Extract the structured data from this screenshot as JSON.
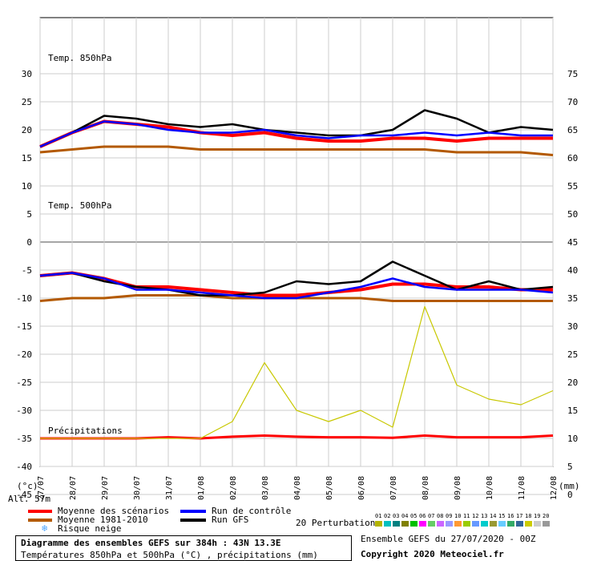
{
  "chart_data": {
    "type": "line",
    "x": [
      "27/07",
      "28/07",
      "29/07",
      "30/07",
      "31/07",
      "01/08",
      "02/08",
      "03/08",
      "04/08",
      "05/08",
      "06/08",
      "07/08",
      "08/08",
      "09/08",
      "10/08",
      "11/08",
      "12/08"
    ],
    "left_axis_ticks": [
      "30",
      "25",
      "20",
      "15",
      "10",
      "5",
      "0",
      "-5",
      "-10",
      "-15",
      "-20",
      "-25",
      "-30",
      "-35",
      "-40",
      "-45"
    ],
    "right_axis_ticks": [
      "75",
      "70",
      "65",
      "60",
      "55",
      "50",
      "45",
      "40",
      "35",
      "30",
      "25",
      "20",
      "15",
      "10",
      "5",
      "0"
    ],
    "left_axis_unit": "(°c)",
    "right_axis_unit": "(mm)",
    "altitude_label": "Alt. 57m",
    "panel_labels": {
      "t850": "Temp. 850hPa",
      "t500": "Temp. 500hPa",
      "precip": "Précipitations"
    },
    "series": [
      {
        "name": "Moyenne des scénarios (850hPa)",
        "color": "#ff0000",
        "values": [
          17.0,
          19.5,
          21.5,
          21.0,
          20.5,
          19.5,
          19.0,
          19.5,
          18.5,
          18.0,
          18.0,
          18.5,
          18.5,
          18.0,
          18.5,
          18.5,
          18.5
        ]
      },
      {
        "name": "Moyenne 1981-2010 (850hPa)",
        "color": "#b35900",
        "values": [
          16.0,
          16.5,
          17.0,
          17.0,
          17.0,
          16.5,
          16.5,
          16.5,
          16.5,
          16.5,
          16.5,
          16.5,
          16.5,
          16.0,
          16.0,
          16.0,
          15.5
        ]
      },
      {
        "name": "Run GFS (850hPa)",
        "color": "#000000",
        "values": [
          17.0,
          19.5,
          22.5,
          22.0,
          21.0,
          20.5,
          21.0,
          20.0,
          19.5,
          19.0,
          19.0,
          20.0,
          23.5,
          22.0,
          19.5,
          20.5,
          20.0
        ]
      },
      {
        "name": "Run de contrôle (850hPa)",
        "color": "#0000ff",
        "values": [
          17.0,
          19.5,
          21.5,
          21.0,
          20.0,
          19.5,
          19.5,
          20.0,
          19.0,
          18.5,
          19.0,
          19.0,
          19.5,
          19.0,
          19.5,
          19.0,
          19.0
        ]
      },
      {
        "name": "Moyenne des scénarios (500hPa)",
        "color": "#ff0000",
        "values": [
          -6.0,
          -5.5,
          -6.5,
          -8.0,
          -8.0,
          -8.5,
          -9.0,
          -9.5,
          -9.5,
          -9.0,
          -8.5,
          -7.5,
          -7.5,
          -8.0,
          -8.0,
          -8.5,
          -8.5
        ]
      },
      {
        "name": "Moyenne 1981-2010 (500hPa)",
        "color": "#b35900",
        "values": [
          -10.5,
          -10.0,
          -10.0,
          -9.5,
          -9.5,
          -9.5,
          -10.0,
          -10.0,
          -10.0,
          -10.0,
          -10.0,
          -10.5,
          -10.5,
          -10.5,
          -10.5,
          -10.5,
          -10.5
        ]
      },
      {
        "name": "Run GFS (500hPa)",
        "color": "#000000",
        "values": [
          -6.0,
          -5.5,
          -7.0,
          -8.0,
          -8.5,
          -9.5,
          -9.5,
          -9.0,
          -7.0,
          -7.5,
          -7.0,
          -3.5,
          -6.0,
          -8.5,
          -7.0,
          -8.5,
          -8.0
        ]
      },
      {
        "name": "Run de contrôle (500hPa)",
        "color": "#0000ff",
        "values": [
          -6.0,
          -5.5,
          -6.5,
          -8.5,
          -8.5,
          -9.0,
          -9.5,
          -10.0,
          -10.0,
          -9.0,
          -8.0,
          -6.5,
          -8.0,
          -8.5,
          -8.5,
          -8.5,
          -9.0
        ]
      },
      {
        "name": "Précipitations (moyenne)",
        "color": "#ff0000",
        "values": [
          0,
          0,
          0,
          0,
          0.2,
          0,
          0.3,
          0.5,
          0.3,
          0.2,
          0.2,
          0.1,
          0.5,
          0.2,
          0.2,
          0.2,
          0.5
        ]
      },
      {
        "name": "Précipitations (pic perturbation)",
        "color": "#c8c800",
        "values": [
          0,
          0,
          0,
          0,
          0,
          0,
          3.0,
          13.5,
          5.0,
          3.0,
          5.0,
          2.0,
          23.5,
          9.5,
          7.0,
          6.0,
          8.5
        ]
      }
    ],
    "legend": [
      {
        "label": "Moyenne des scénarios",
        "color": "#ff0000"
      },
      {
        "label": "Moyenne 1981-2010",
        "color": "#b35900"
      },
      {
        "label": "Risque neige",
        "color": "#4da6ff"
      },
      {
        "label": "Run de contrôle",
        "color": "#0000ff"
      },
      {
        "label": "Run GFS",
        "color": "#000000"
      }
    ],
    "perturbations": {
      "title": "20 Perturbations",
      "ids": [
        "01",
        "02",
        "03",
        "04",
        "05",
        "06",
        "07",
        "08",
        "09",
        "10",
        "11",
        "12",
        "13",
        "14",
        "15",
        "16",
        "17",
        "18",
        "19",
        "20"
      ],
      "colors": [
        "#b3b300",
        "#00c0c0",
        "#008080",
        "#808000",
        "#00c000",
        "#ff00ff",
        "#66cc66",
        "#cc66ff",
        "#9999ff",
        "#ff9933",
        "#99cc00",
        "#6699ff",
        "#00cccc",
        "#999933",
        "#66ccff",
        "#33aa66",
        "#336699",
        "#cccc00",
        "#cccccc",
        "#999999"
      ]
    },
    "title": "Diagramme des ensembles GEFS sur 384h : 43N 13.3E",
    "subtitle": "Températures 850hPa et 500hPa (°C) , précipitations (mm)",
    "ensemble_info": "Ensemble GEFS du 27/07/2020 - 00Z",
    "copyright": "Copyright 2020 Meteociel.fr"
  }
}
